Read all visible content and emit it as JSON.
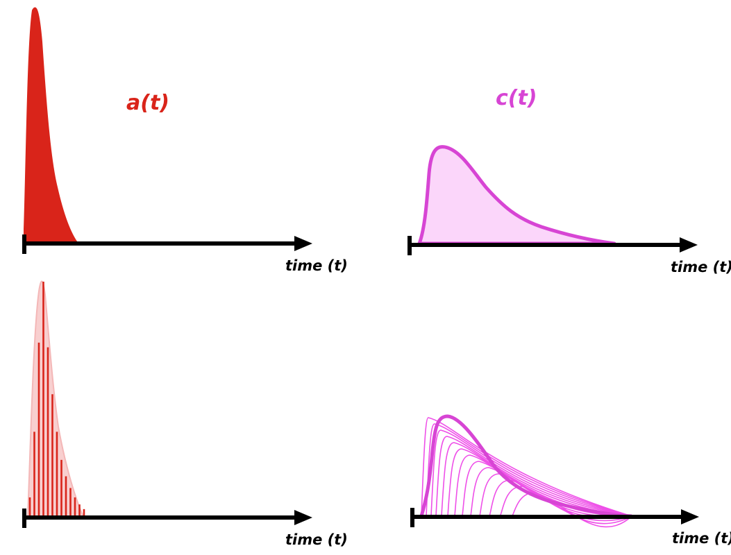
{
  "colors": {
    "red": "#d9241a",
    "red_light": "#f8cfcf",
    "magenta": "#d745d4",
    "magenta_fill": "#fbd6fa",
    "magenta_lines": "#ee4fe8",
    "axis": "#000000"
  },
  "panels": {
    "a_continuous": {
      "label": "a(t)",
      "axis_label": "time (t)"
    },
    "c_continuous": {
      "label": "c(t)",
      "axis_label": "time (t)"
    },
    "a_discrete": {
      "axis_label": "time (t)"
    },
    "c_discrete": {
      "axis_label": "time (t)"
    }
  },
  "impulses": {
    "count": 13,
    "heights_fraction": [
      0.08,
      0.36,
      0.74,
      1.0,
      0.72,
      0.52,
      0.36,
      0.24,
      0.17,
      0.12,
      0.08,
      0.05,
      0.03
    ]
  }
}
